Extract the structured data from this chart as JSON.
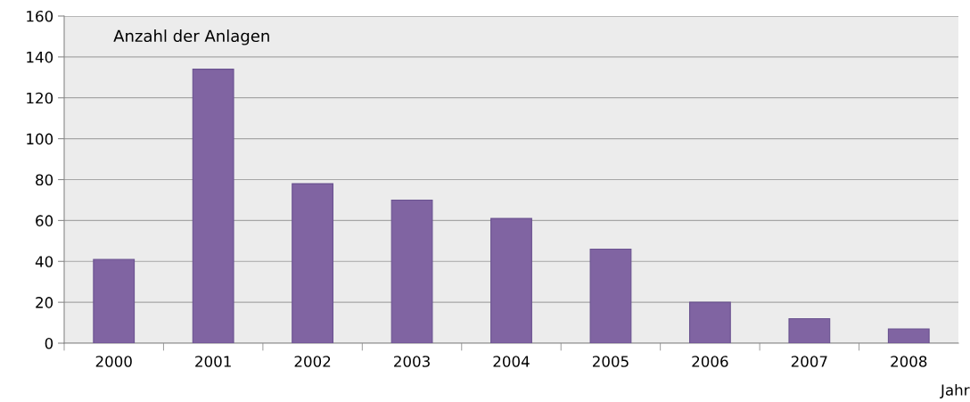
{
  "chart_data": {
    "type": "bar",
    "ylabel": "Anzahl der Anlagen",
    "xlabel": "Jahr",
    "categories": [
      "2000",
      "2001",
      "2002",
      "2003",
      "2004",
      "2005",
      "2006",
      "2007",
      "2008"
    ],
    "values": [
      41,
      134,
      78,
      70,
      61,
      46,
      20,
      12,
      7
    ],
    "color": "#8064a2",
    "ylim": [
      0,
      160
    ],
    "yticks": [
      0,
      20,
      40,
      60,
      80,
      100,
      120,
      140,
      160
    ],
    "grid": "y"
  }
}
